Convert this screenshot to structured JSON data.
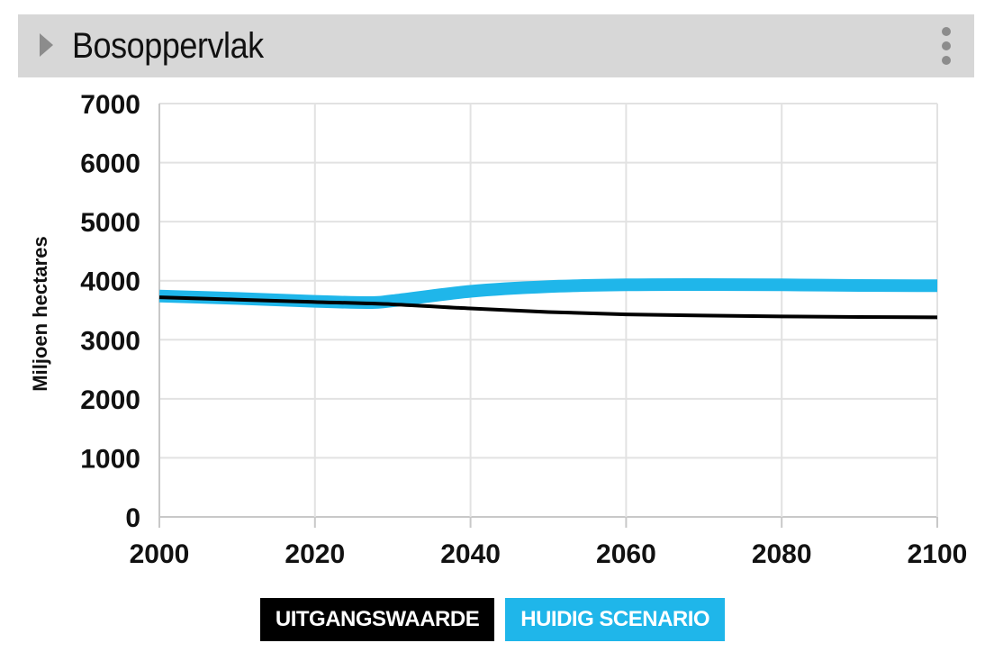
{
  "panel": {
    "title": "Bosoppervlak"
  },
  "icons": {
    "expand": "caret-right-icon",
    "menu": "vertical-dots-icon"
  },
  "colors": {
    "header_bg": "#d7d7d7",
    "grid": "#e2e2e2",
    "axis": "#c8c8c8",
    "baseline": "#000000",
    "scenario": "#1fb6ea",
    "text": "#111111"
  },
  "chart_data": {
    "type": "line",
    "title": "Bosoppervlak",
    "xlabel": "",
    "ylabel": "Miljoen hectares",
    "xlim": [
      2000,
      2100
    ],
    "ylim": [
      0,
      7000
    ],
    "xticks": [
      2000,
      2020,
      2040,
      2060,
      2080,
      2100
    ],
    "yticks": [
      0,
      1000,
      2000,
      3000,
      4000,
      5000,
      6000,
      7000
    ],
    "grid": true,
    "legend_position": "bottom-center",
    "series": [
      {
        "name": "UITGANGSWAARDE",
        "color": "#000000",
        "x": [
          2000,
          2010,
          2020,
          2030,
          2040,
          2050,
          2060,
          2070,
          2080,
          2090,
          2100
        ],
        "values": [
          3720,
          3680,
          3640,
          3600,
          3530,
          3470,
          3430,
          3410,
          3395,
          3385,
          3380
        ]
      },
      {
        "name": "HUIDIG SCENARIO",
        "color": "#1fb6ea",
        "x": [
          2000,
          2010,
          2020,
          2027,
          2030,
          2040,
          2050,
          2060,
          2070,
          2080,
          2090,
          2100
        ],
        "values": [
          3740,
          3700,
          3650,
          3630,
          3660,
          3820,
          3900,
          3930,
          3935,
          3930,
          3920,
          3915
        ]
      }
    ]
  }
}
